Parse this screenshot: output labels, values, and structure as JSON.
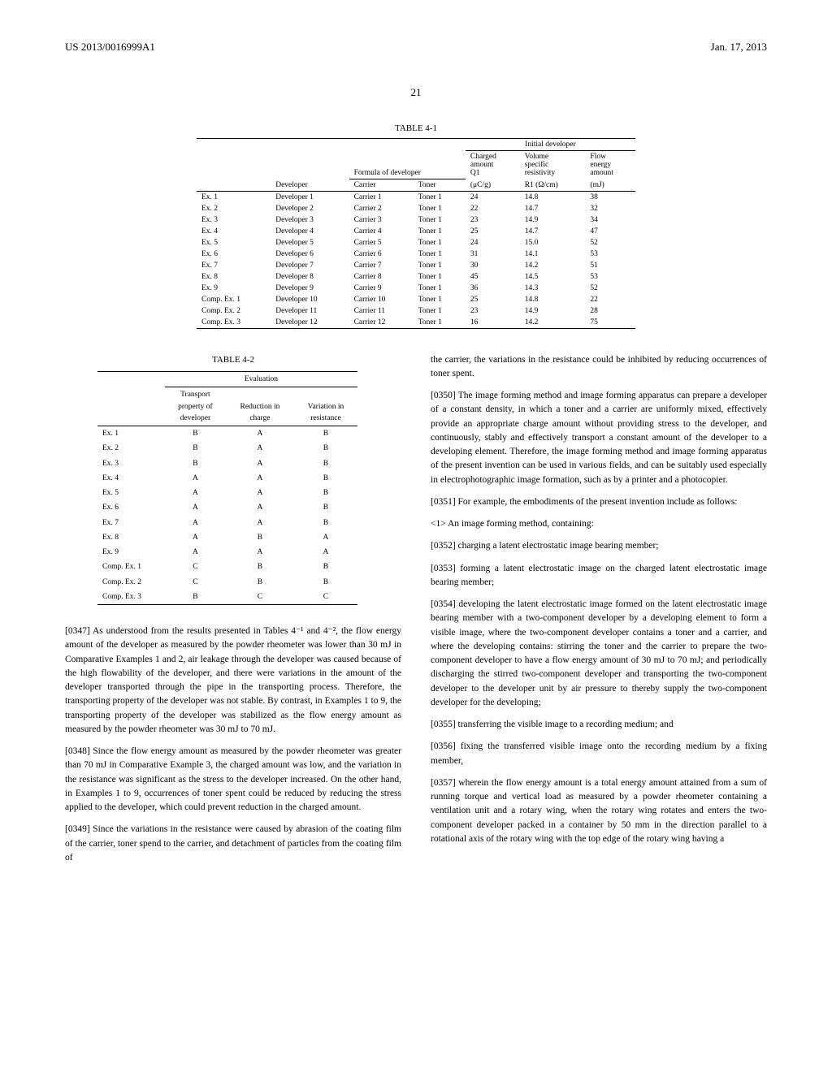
{
  "header": {
    "left": "US 2013/0016999A1",
    "right": "Jan. 17, 2013"
  },
  "page_number": "21",
  "table41": {
    "caption": "TABLE 4-1",
    "group_headers": {
      "formula": "Formula of developer",
      "initial_dev": "Initial developer"
    },
    "columns": {
      "label": "",
      "developer": "Developer",
      "carrier": "Carrier",
      "toner": "Toner",
      "charged": "Charged amount Q1 (μC/g)",
      "volume": "Volume specific resistivity R1 (Ω/cm)",
      "flow": "Flow energy amount (mJ)"
    },
    "rows": [
      {
        "label": "Ex. 1",
        "developer": "Developer 1",
        "carrier": "Carrier 1",
        "toner": "Toner 1",
        "charged": "24",
        "volume": "14.8",
        "flow": "38"
      },
      {
        "label": "Ex. 2",
        "developer": "Developer 2",
        "carrier": "Carrier 2",
        "toner": "Toner 1",
        "charged": "22",
        "volume": "14.7",
        "flow": "32"
      },
      {
        "label": "Ex. 3",
        "developer": "Developer 3",
        "carrier": "Carrier 3",
        "toner": "Toner 1",
        "charged": "23",
        "volume": "14.9",
        "flow": "34"
      },
      {
        "label": "Ex. 4",
        "developer": "Developer 4",
        "carrier": "Carrier 4",
        "toner": "Toner 1",
        "charged": "25",
        "volume": "14.7",
        "flow": "47"
      },
      {
        "label": "Ex. 5",
        "developer": "Developer 5",
        "carrier": "Carrier 5",
        "toner": "Toner 1",
        "charged": "24",
        "volume": "15.0",
        "flow": "52"
      },
      {
        "label": "Ex. 6",
        "developer": "Developer 6",
        "carrier": "Carrier 6",
        "toner": "Toner 1",
        "charged": "31",
        "volume": "14.1",
        "flow": "53"
      },
      {
        "label": "Ex. 7",
        "developer": "Developer 7",
        "carrier": "Carrier 7",
        "toner": "Toner 1",
        "charged": "30",
        "volume": "14.2",
        "flow": "51"
      },
      {
        "label": "Ex. 8",
        "developer": "Developer 8",
        "carrier": "Carrier 8",
        "toner": "Toner 1",
        "charged": "45",
        "volume": "14.5",
        "flow": "53"
      },
      {
        "label": "Ex. 9",
        "developer": "Developer 9",
        "carrier": "Carrier 9",
        "toner": "Toner 1",
        "charged": "36",
        "volume": "14.3",
        "flow": "52"
      },
      {
        "label": "Comp. Ex. 1",
        "developer": "Developer 10",
        "carrier": "Carrier 10",
        "toner": "Toner 1",
        "charged": "25",
        "volume": "14.8",
        "flow": "22"
      },
      {
        "label": "Comp. Ex. 2",
        "developer": "Developer 11",
        "carrier": "Carrier 11",
        "toner": "Toner 1",
        "charged": "23",
        "volume": "14.9",
        "flow": "28"
      },
      {
        "label": "Comp. Ex. 3",
        "developer": "Developer 12",
        "carrier": "Carrier 12",
        "toner": "Toner 1",
        "charged": "16",
        "volume": "14.2",
        "flow": "75"
      }
    ]
  },
  "table42": {
    "caption": "TABLE 4-2",
    "group_header": "Evaluation",
    "columns": {
      "label": "",
      "transport": "Transport property of developer",
      "reduction": "Reduction in charge",
      "variation": "Variation in resistance"
    },
    "rows": [
      {
        "label": "Ex. 1",
        "transport": "B",
        "reduction": "A",
        "variation": "B"
      },
      {
        "label": "Ex. 2",
        "transport": "B",
        "reduction": "A",
        "variation": "B"
      },
      {
        "label": "Ex. 3",
        "transport": "B",
        "reduction": "A",
        "variation": "B"
      },
      {
        "label": "Ex. 4",
        "transport": "A",
        "reduction": "A",
        "variation": "B"
      },
      {
        "label": "Ex. 5",
        "transport": "A",
        "reduction": "A",
        "variation": "B"
      },
      {
        "label": "Ex. 6",
        "transport": "A",
        "reduction": "A",
        "variation": "B"
      },
      {
        "label": "Ex. 7",
        "transport": "A",
        "reduction": "A",
        "variation": "B"
      },
      {
        "label": "Ex. 8",
        "transport": "A",
        "reduction": "B",
        "variation": "A"
      },
      {
        "label": "Ex. 9",
        "transport": "A",
        "reduction": "A",
        "variation": "A"
      },
      {
        "label": "Comp. Ex. 1",
        "transport": "C",
        "reduction": "B",
        "variation": "B"
      },
      {
        "label": "Comp. Ex. 2",
        "transport": "C",
        "reduction": "B",
        "variation": "B"
      },
      {
        "label": "Comp. Ex. 3",
        "transport": "B",
        "reduction": "C",
        "variation": "C"
      }
    ]
  },
  "paragraphs": {
    "p0347": "[0347]   As understood from the results presented in Tables 4⁻¹ and 4⁻², the flow energy amount of the developer as measured by the powder rheometer was lower than 30 mJ in Comparative Examples 1 and 2, air leakage through the developer was caused because of the high flowability of the developer, and there were variations in the amount of the developer transported through the pipe in the transporting process. Therefore, the transporting property of the developer was not stable. By contrast, in Examples 1 to 9, the transporting property of the developer was stabilized as the flow energy amount as measured by the powder rheometer was 30 mJ to 70 mJ.",
    "p0348": "[0348]   Since the flow energy amount as measured by the powder rheometer was greater than 70 mJ in Comparative Example 3, the charged amount was low, and the variation in the resistance was significant as the stress to the developer increased. On the other hand, in Examples 1 to 9, occurrences of toner spent could be reduced by reducing the stress applied to the developer, which could prevent reduction in the charged amount.",
    "p0349": "[0349]   Since the variations in the resistance were caused by abrasion of the coating film of the carrier, toner spend to the carrier, and detachment of particles from the coating film of",
    "p0349b": "the carrier, the variations in the resistance could be inhibited by reducing occurrences of toner spent.",
    "p0350": "[0350]   The image forming method and image forming apparatus can prepare a developer of a constant density, in which a toner and a carrier are uniformly mixed, effectively provide an appropriate charge amount without providing stress to the developer, and continuously, stably and effectively transport a constant amount of the developer to a developing element. Therefore, the image forming method and image forming apparatus of the present invention can be used in various fields, and can be suitably used especially in electrophotographic image formation, such as by a printer and a photocopier.",
    "p0351": "[0351]   For example, the embodiments of the present invention include as follows:",
    "p0351b": "<1> An image forming method, containing:",
    "p0352": "[0352]   charging a latent electrostatic image bearing member;",
    "p0353": "[0353]   forming a latent electrostatic image on the charged latent electrostatic image bearing member;",
    "p0354": "[0354]   developing the latent electrostatic image formed on the latent electrostatic image bearing member with a two-component developer by a developing element to form a visible image, where the two-component developer contains a toner and a carrier, and where the developing contains: stirring the toner and the carrier to prepare the two-component developer to have a flow energy amount of 30 mJ to 70 mJ; and periodically discharging the stirred two-component developer and transporting the two-component developer to the developer unit by air pressure to thereby supply the two-component developer for the developing;",
    "p0355": "[0355]   transferring the visible image to a recording medium; and",
    "p0356": "[0356]   fixing the transferred visible image onto the recording medium by a fixing member,",
    "p0357": "[0357]   wherein the flow energy amount is a total energy amount attained from a sum of running torque and vertical load as measured by a powder rheometer containing a ventilation unit and a rotary wing, when the rotary wing rotates and enters the two-component developer packed in a container by 50 mm in the direction parallel to a rotational axis of the rotary wing with the top edge of the rotary wing having a"
  }
}
